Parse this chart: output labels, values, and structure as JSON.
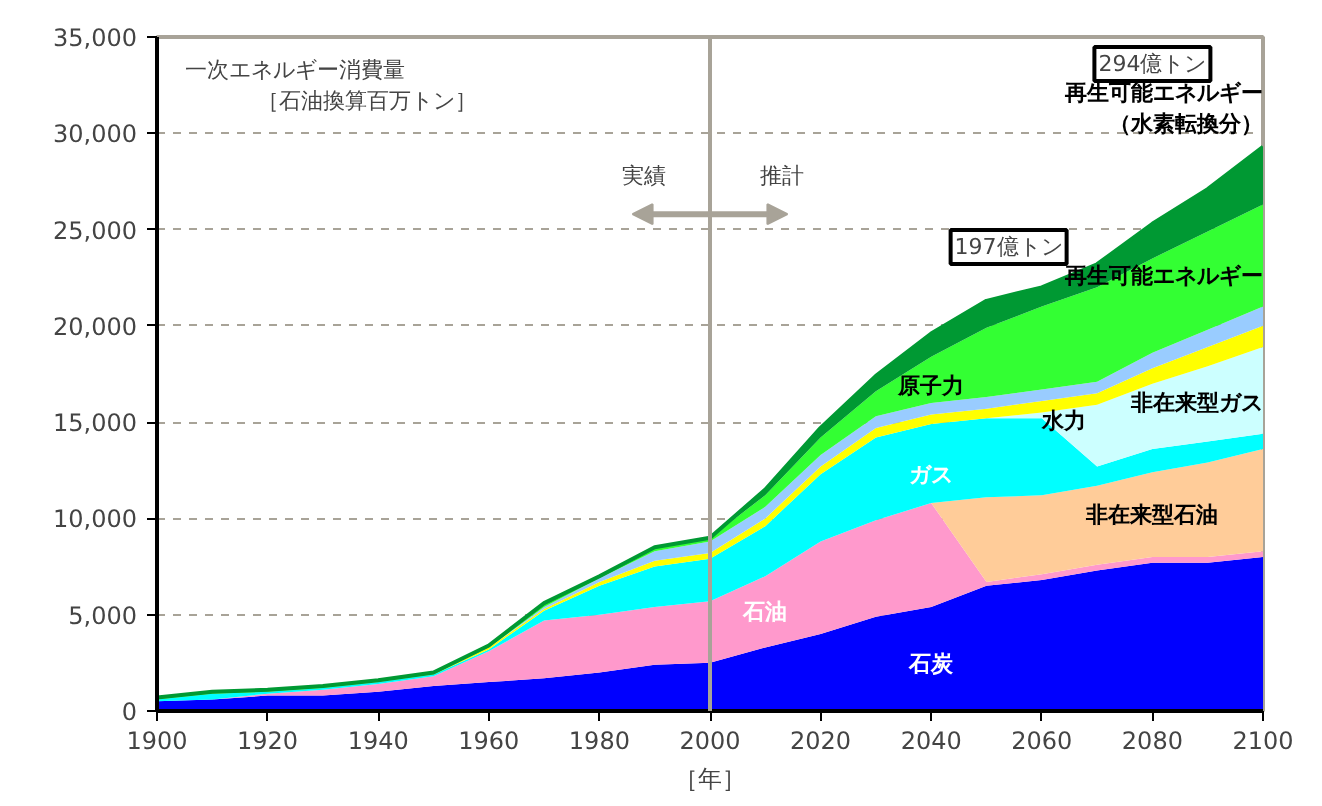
{
  "chart_data": {
    "type": "area",
    "stacked": true,
    "xlabel": "［年］",
    "x": [
      1900,
      1910,
      1920,
      1930,
      1940,
      1950,
      1960,
      1970,
      1980,
      1990,
      2000,
      2010,
      2020,
      2030,
      2040,
      2050,
      2060,
      2070,
      2080,
      2090,
      2100
    ],
    "series": [
      {
        "name": "石炭",
        "color": "#0000ff",
        "values": [
          500,
          600,
          800,
          800,
          1000,
          1300,
          1500,
          1700,
          2000,
          2400,
          2500,
          3300,
          4000,
          4900,
          5400,
          6500,
          6800,
          7300,
          7700,
          7700,
          8000
        ]
      },
      {
        "name": "石油",
        "color": "#ff99cc",
        "values": [
          0,
          0,
          100,
          300,
          400,
          500,
          1600,
          3000,
          3000,
          3000,
          3200,
          3700,
          4800,
          5000,
          5400,
          200,
          300,
          300,
          300,
          300,
          300
        ]
      },
      {
        "name": "非在来型石油",
        "color": "#ffcc99",
        "values": [
          0,
          0,
          0,
          0,
          0,
          0,
          0,
          0,
          0,
          0,
          0,
          0,
          0,
          0,
          0,
          4400,
          4100,
          4100,
          4400,
          4900,
          5300
        ]
      },
      {
        "name": "ガス",
        "color": "#00ffff",
        "values": [
          100,
          300,
          100,
          100,
          100,
          100,
          100,
          500,
          1500,
          2100,
          2200,
          2600,
          3500,
          4300,
          4100,
          4100,
          4000,
          1000,
          1200,
          1100,
          800
        ]
      },
      {
        "name": "非在来型ガス",
        "color": "#ccffff",
        "values": [
          0,
          0,
          0,
          0,
          0,
          0,
          0,
          0,
          0,
          0,
          0,
          0,
          0,
          0,
          0,
          0,
          300,
          3200,
          3400,
          3900,
          4500
        ]
      },
      {
        "name": "水力",
        "color": "#ffff00",
        "values": [
          0,
          0,
          0,
          0,
          0,
          0,
          100,
          100,
          200,
          300,
          300,
          400,
          400,
          500,
          500,
          500,
          600,
          600,
          800,
          1000,
          1100
        ]
      },
      {
        "name": "原子力",
        "color": "#99ccff",
        "values": [
          0,
          0,
          0,
          0,
          0,
          0,
          0,
          100,
          200,
          500,
          600,
          600,
          600,
          600,
          600,
          600,
          600,
          600,
          800,
          900,
          1000
        ]
      },
      {
        "name": "再生可能エネルギー",
        "color": "#33ff33",
        "values": [
          100,
          100,
          100,
          100,
          100,
          100,
          100,
          200,
          100,
          200,
          200,
          600,
          900,
          1300,
          2400,
          3600,
          4300,
          4900,
          4900,
          5100,
          5300
        ]
      },
      {
        "name": "再生可能エネルギー（水素転換分）",
        "color": "#009933",
        "values": [
          0,
          0,
          0,
          0,
          0,
          0,
          0,
          0,
          0,
          0,
          0,
          300,
          500,
          800,
          1200,
          1400,
          1000,
          1200,
          1800,
          2200,
          3000
        ]
      }
    ],
    "xlim": [
      1900,
      2100
    ],
    "xticks": [
      1900,
      1920,
      1940,
      1960,
      1980,
      2000,
      2020,
      2040,
      2060,
      2080,
      2100
    ],
    "ylim": [
      0,
      35000
    ],
    "yticks": [
      {
        "value": 0,
        "label": "0"
      },
      {
        "value": 5000,
        "label": "5,000"
      },
      {
        "value": 10000,
        "label": "10,000"
      },
      {
        "value": 15000,
        "label": "15,000"
      },
      {
        "value": 20000,
        "label": "20,000"
      },
      {
        "value": 25000,
        "label": "25,000"
      },
      {
        "value": 30000,
        "label": "30,000"
      },
      {
        "value": 35000,
        "label": "35,000"
      }
    ],
    "grid": "y",
    "legend": false,
    "ref_lines": [
      {
        "axis": "x",
        "value": 2000,
        "color": "#a8a398"
      }
    ],
    "annotations": [
      "一次エネルギー消費量",
      "［石油換算百万トン］",
      "実績",
      "推計",
      "197億トン",
      "294億トン"
    ]
  }
}
